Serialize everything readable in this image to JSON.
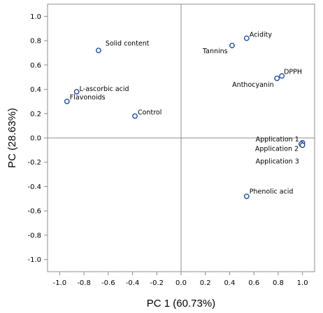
{
  "chart_data": {
    "type": "scatter",
    "xlabel": "PC 1 (60.73%)",
    "ylabel": "PC (28.63%)",
    "xlim": [
      -1.1,
      1.1
    ],
    "ylim": [
      -1.1,
      1.1
    ],
    "xticks": [
      "-1.0",
      "-0.8",
      "-0.6",
      "-0.4",
      "-0.2",
      "0.0",
      "0.2",
      "0.4",
      "0.6",
      "0.8",
      "1.0"
    ],
    "yticks": [
      "1.0",
      "0.8",
      "0.6",
      "0.4",
      "0.2",
      "0.0",
      "-0.2",
      "-0.4",
      "-0.6",
      "-0.8",
      "-1.0"
    ],
    "grid": false,
    "reference_lines": {
      "x": 0,
      "y": 0
    },
    "marker": {
      "shape": "open-circle",
      "color": "#1f4e9c"
    },
    "points": [
      {
        "label": "Solid content",
        "x": -0.68,
        "y": 0.72
      },
      {
        "label": "L-ascorbic acid",
        "x": -0.86,
        "y": 0.38
      },
      {
        "label": "Flavonoids",
        "x": -0.94,
        "y": 0.3
      },
      {
        "label": "Control",
        "x": -0.38,
        "y": 0.18
      },
      {
        "label": "Acidity",
        "x": 0.54,
        "y": 0.82
      },
      {
        "label": "Tannins",
        "x": 0.42,
        "y": 0.76
      },
      {
        "label": "DPPH",
        "x": 0.83,
        "y": 0.51
      },
      {
        "label": "Anthocyanin",
        "x": 0.79,
        "y": 0.49
      },
      {
        "label": "Application 1",
        "x": 1.0,
        "y": -0.04
      },
      {
        "label": "Application 2",
        "x": 0.99,
        "y": -0.05
      },
      {
        "label": "Application 3",
        "x": 1.0,
        "y": -0.06
      },
      {
        "label": "Phenolic acid",
        "x": 0.54,
        "y": -0.48
      }
    ]
  }
}
